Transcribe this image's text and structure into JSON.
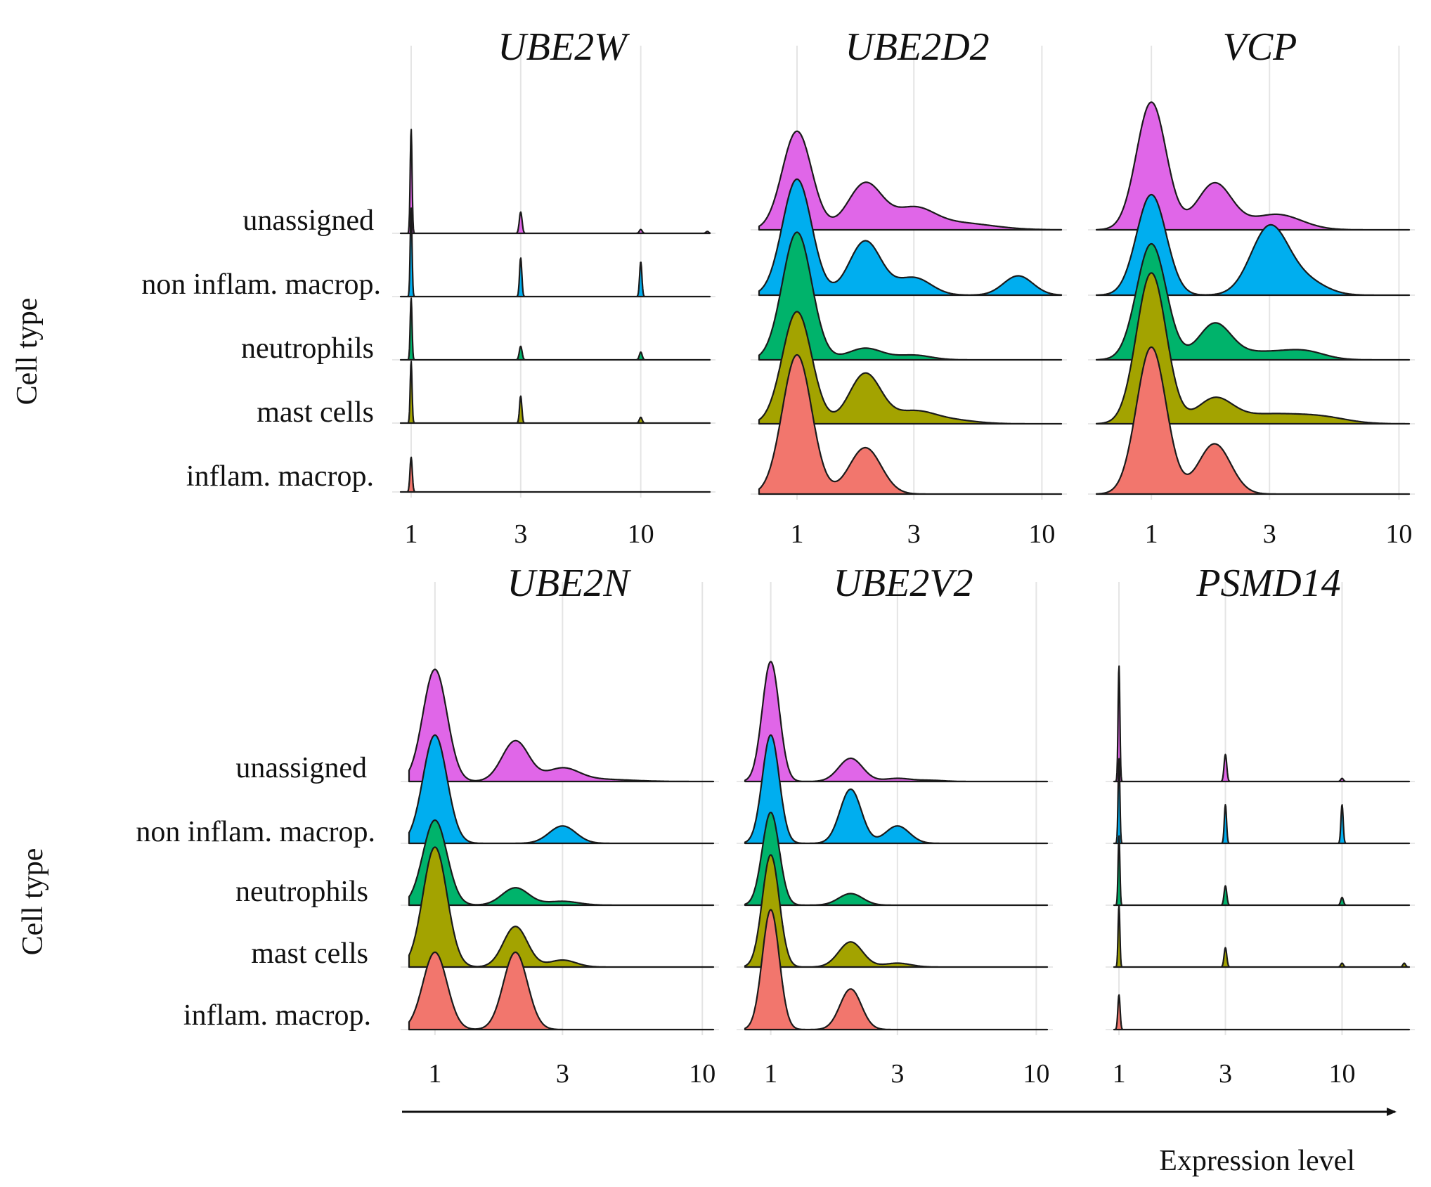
{
  "figure": {
    "x_axis_title": "Expression level",
    "y_axis_title": "Cell type"
  },
  "chart_data": {
    "type": "ridgeline",
    "xscale": "log",
    "cell_types": [
      "unassigned",
      "non inflam. macrop.",
      "neutrophils",
      "mast cells",
      "inflam. macrop."
    ],
    "colors": {
      "unassigned": "#e066e8",
      "non inflam. macrop.": "#00aeef",
      "neutrophils": "#00b36b",
      "mast cells": "#a3a300",
      "inflam. macrop.": "#f2766d"
    },
    "panels": [
      {
        "title": "UBE2W",
        "xlim": [
          0.9,
          20
        ],
        "xticks": [
          1,
          3,
          10
        ],
        "tick_labels": [
          "1",
          "3",
          "10"
        ],
        "series": [
          {
            "cell_type": "unassigned",
            "peaks": [
              {
                "x": 1,
                "h": 2.7,
                "w": 0.004
              },
              {
                "x": 3,
                "h": 0.55,
                "w": 0.006
              },
              {
                "x": 10,
                "h": 0.1,
                "w": 0.006
              },
              {
                "x": 19.5,
                "h": 0.05,
                "w": 0.006
              }
            ]
          },
          {
            "cell_type": "non inflam. macrop.",
            "peaks": [
              {
                "x": 1,
                "h": 2.3,
                "w": 0.004
              },
              {
                "x": 3,
                "h": 1.0,
                "w": 0.005
              },
              {
                "x": 10,
                "h": 0.9,
                "w": 0.005
              }
            ]
          },
          {
            "cell_type": "neutrophils",
            "peaks": [
              {
                "x": 1,
                "h": 1.6,
                "w": 0.004
              },
              {
                "x": 3,
                "h": 0.35,
                "w": 0.006
              },
              {
                "x": 10,
                "h": 0.2,
                "w": 0.006
              }
            ]
          },
          {
            "cell_type": "mast cells",
            "peaks": [
              {
                "x": 1,
                "h": 1.6,
                "w": 0.004
              },
              {
                "x": 3,
                "h": 0.7,
                "w": 0.005
              },
              {
                "x": 10,
                "h": 0.15,
                "w": 0.006
              }
            ]
          },
          {
            "cell_type": "inflam. macrop.",
            "peaks": [
              {
                "x": 1,
                "h": 0.9,
                "w": 0.005
              }
            ]
          }
        ]
      },
      {
        "title": "UBE2D2",
        "xlim": [
          0.7,
          12
        ],
        "xticks": [
          1,
          3,
          10
        ],
        "tick_labels": [
          "1",
          "3",
          "10"
        ],
        "series": [
          {
            "cell_type": "unassigned",
            "peaks": [
              {
                "x": 1,
                "h": 2.55,
                "w": 0.06
              },
              {
                "x": 1.9,
                "h": 1.2,
                "w": 0.07
              },
              {
                "x": 3,
                "h": 0.5,
                "w": 0.08
              },
              {
                "x": 4.5,
                "h": 0.18,
                "w": 0.14
              }
            ]
          },
          {
            "cell_type": "non inflam. macrop.",
            "peaks": [
              {
                "x": 1,
                "h": 3.0,
                "w": 0.06
              },
              {
                "x": 1.9,
                "h": 1.4,
                "w": 0.065
              },
              {
                "x": 3,
                "h": 0.45,
                "w": 0.07
              },
              {
                "x": 8,
                "h": 0.5,
                "w": 0.06
              }
            ]
          },
          {
            "cell_type": "neutrophils",
            "peaks": [
              {
                "x": 1,
                "h": 3.3,
                "w": 0.06
              },
              {
                "x": 1.9,
                "h": 0.3,
                "w": 0.07
              },
              {
                "x": 3,
                "h": 0.12,
                "w": 0.07
              }
            ]
          },
          {
            "cell_type": "mast cells",
            "peaks": [
              {
                "x": 1,
                "h": 2.9,
                "w": 0.06
              },
              {
                "x": 1.9,
                "h": 1.3,
                "w": 0.065
              },
              {
                "x": 3,
                "h": 0.3,
                "w": 0.08
              },
              {
                "x": 4.2,
                "h": 0.1,
                "w": 0.1
              }
            ]
          },
          {
            "cell_type": "inflam. macrop.",
            "peaks": [
              {
                "x": 1,
                "h": 3.6,
                "w": 0.06
              },
              {
                "x": 1.9,
                "h": 1.2,
                "w": 0.065
              }
            ]
          }
        ]
      },
      {
        "title": "VCP",
        "xlim": [
          0.6,
          11
        ],
        "xticks": [
          1,
          3,
          10
        ],
        "tick_labels": [
          "1",
          "3",
          "10"
        ],
        "series": [
          {
            "cell_type": "unassigned",
            "peaks": [
              {
                "x": 1,
                "h": 3.3,
                "w": 0.06
              },
              {
                "x": 1.8,
                "h": 1.2,
                "w": 0.07
              },
              {
                "x": 3.2,
                "h": 0.4,
                "w": 0.1
              }
            ]
          },
          {
            "cell_type": "non inflam. macrop.",
            "peaks": [
              {
                "x": 1,
                "h": 2.6,
                "w": 0.06
              },
              {
                "x": 3.0,
                "h": 1.75,
                "w": 0.075
              },
              {
                "x": 4.2,
                "h": 0.35,
                "w": 0.08
              }
            ]
          },
          {
            "cell_type": "neutrophils",
            "peaks": [
              {
                "x": 1,
                "h": 3.0,
                "w": 0.06
              },
              {
                "x": 1.8,
                "h": 0.9,
                "w": 0.065
              },
              {
                "x": 2.8,
                "h": 0.2,
                "w": 0.12
              },
              {
                "x": 4.2,
                "h": 0.18,
                "w": 0.08
              }
            ]
          },
          {
            "cell_type": "mast cells",
            "peaks": [
              {
                "x": 1,
                "h": 3.9,
                "w": 0.06
              },
              {
                "x": 1.8,
                "h": 0.6,
                "w": 0.07
              },
              {
                "x": 3,
                "h": 0.25,
                "w": 0.15
              },
              {
                "x": 5,
                "h": 0.12,
                "w": 0.1
              }
            ]
          },
          {
            "cell_type": "inflam. macrop.",
            "peaks": [
              {
                "x": 1,
                "h": 3.8,
                "w": 0.06
              },
              {
                "x": 1.8,
                "h": 1.3,
                "w": 0.065
              }
            ]
          }
        ]
      },
      {
        "title": "UBE2N",
        "xlim": [
          0.8,
          11
        ],
        "xticks": [
          1,
          3,
          10
        ],
        "tick_labels": [
          "1",
          "3",
          "10"
        ],
        "series": [
          {
            "cell_type": "unassigned",
            "peaks": [
              {
                "x": 1,
                "h": 2.9,
                "w": 0.045
              },
              {
                "x": 2,
                "h": 1.05,
                "w": 0.05
              },
              {
                "x": 3,
                "h": 0.32,
                "w": 0.06
              },
              {
                "x": 4,
                "h": 0.06,
                "w": 0.12
              }
            ]
          },
          {
            "cell_type": "non inflam. macrop.",
            "peaks": [
              {
                "x": 1,
                "h": 2.8,
                "w": 0.045
              },
              {
                "x": 3,
                "h": 0.45,
                "w": 0.05
              }
            ]
          },
          {
            "cell_type": "neutrophils",
            "peaks": [
              {
                "x": 1,
                "h": 2.2,
                "w": 0.045
              },
              {
                "x": 2,
                "h": 0.45,
                "w": 0.05
              },
              {
                "x": 3,
                "h": 0.1,
                "w": 0.06
              }
            ]
          },
          {
            "cell_type": "mast cells",
            "peaks": [
              {
                "x": 1,
                "h": 3.1,
                "w": 0.045
              },
              {
                "x": 2,
                "h": 1.05,
                "w": 0.045
              },
              {
                "x": 3,
                "h": 0.18,
                "w": 0.05
              }
            ]
          },
          {
            "cell_type": "inflam. macrop.",
            "peaks": [
              {
                "x": 1,
                "h": 2.0,
                "w": 0.045
              },
              {
                "x": 2,
                "h": 2.0,
                "w": 0.045
              }
            ]
          }
        ]
      },
      {
        "title": "UBE2V2",
        "xlim": [
          0.8,
          11
        ],
        "xticks": [
          1,
          3,
          10
        ],
        "tick_labels": [
          "1",
          "3",
          "10"
        ],
        "series": [
          {
            "cell_type": "unassigned",
            "peaks": [
              {
                "x": 1,
                "h": 3.1,
                "w": 0.032
              },
              {
                "x": 2,
                "h": 0.6,
                "w": 0.045
              },
              {
                "x": 3,
                "h": 0.08,
                "w": 0.05
              },
              {
                "x": 4,
                "h": 0.03,
                "w": 0.05
              }
            ]
          },
          {
            "cell_type": "non inflam. macrop.",
            "peaks": [
              {
                "x": 1,
                "h": 2.8,
                "w": 0.032
              },
              {
                "x": 2,
                "h": 1.4,
                "w": 0.04
              },
              {
                "x": 3,
                "h": 0.45,
                "w": 0.045
              }
            ]
          },
          {
            "cell_type": "neutrophils",
            "peaks": [
              {
                "x": 1,
                "h": 2.4,
                "w": 0.032
              },
              {
                "x": 2,
                "h": 0.3,
                "w": 0.045
              }
            ]
          },
          {
            "cell_type": "mast cells",
            "peaks": [
              {
                "x": 1,
                "h": 2.9,
                "w": 0.032
              },
              {
                "x": 2,
                "h": 0.65,
                "w": 0.045
              },
              {
                "x": 3,
                "h": 0.1,
                "w": 0.05
              }
            ]
          },
          {
            "cell_type": "inflam. macrop.",
            "peaks": [
              {
                "x": 1,
                "h": 3.1,
                "w": 0.032
              },
              {
                "x": 2,
                "h": 1.05,
                "w": 0.04
              }
            ]
          }
        ]
      },
      {
        "title": "PSMD14",
        "xlim": [
          0.95,
          20
        ],
        "xticks": [
          1,
          3,
          10
        ],
        "tick_labels": [
          "1",
          "3",
          "10"
        ],
        "series": [
          {
            "cell_type": "unassigned",
            "peaks": [
              {
                "x": 1,
                "h": 3.0,
                "w": 0.004
              },
              {
                "x": 3,
                "h": 0.7,
                "w": 0.006
              },
              {
                "x": 10,
                "h": 0.08,
                "w": 0.006
              }
            ]
          },
          {
            "cell_type": "non inflam. macrop.",
            "peaks": [
              {
                "x": 1,
                "h": 2.2,
                "w": 0.004
              },
              {
                "x": 3,
                "h": 1.0,
                "w": 0.005
              },
              {
                "x": 10,
                "h": 1.0,
                "w": 0.005
              }
            ]
          },
          {
            "cell_type": "neutrophils",
            "peaks": [
              {
                "x": 1,
                "h": 1.8,
                "w": 0.004
              },
              {
                "x": 3,
                "h": 0.5,
                "w": 0.006
              },
              {
                "x": 10,
                "h": 0.2,
                "w": 0.006
              }
            ]
          },
          {
            "cell_type": "mast cells",
            "peaks": [
              {
                "x": 1,
                "h": 1.6,
                "w": 0.004
              },
              {
                "x": 3,
                "h": 0.5,
                "w": 0.006
              },
              {
                "x": 10,
                "h": 0.1,
                "w": 0.006
              },
              {
                "x": 19,
                "h": 0.1,
                "w": 0.006
              }
            ]
          },
          {
            "cell_type": "inflam. macrop.",
            "peaks": [
              {
                "x": 1,
                "h": 0.9,
                "w": 0.005
              }
            ]
          }
        ]
      }
    ]
  }
}
